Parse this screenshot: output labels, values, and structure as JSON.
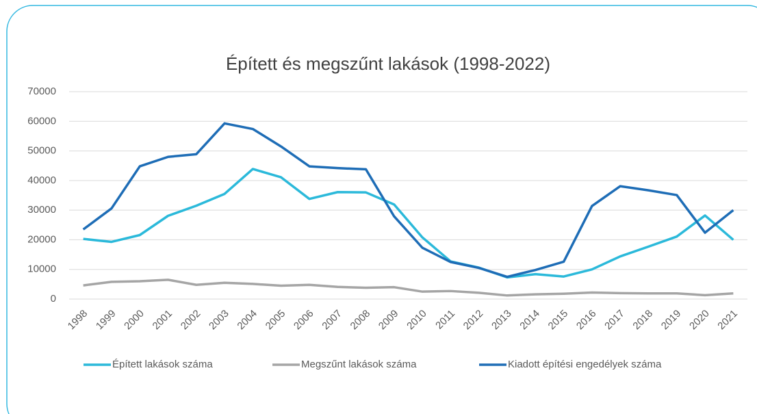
{
  "chart_data": {
    "type": "line",
    "title": "Épített és megszűnt lakások (1998-2022)",
    "categories": [
      "1998",
      "1999",
      "2000",
      "2001",
      "2002",
      "2003",
      "2004",
      "2005",
      "2006",
      "2007",
      "2008",
      "2009",
      "2010",
      "2011",
      "2012",
      "2013",
      "2014",
      "2015",
      "2016",
      "2017",
      "2018",
      "2019",
      "2020",
      "2021"
    ],
    "series": [
      {
        "name": "Épített lakások száma",
        "color": "#2bb9da",
        "values": [
          20300,
          19300,
          21600,
          28100,
          31500,
          35500,
          43900,
          41100,
          33800,
          36100,
          36000,
          31900,
          20800,
          12700,
          10600,
          7300,
          8400,
          7600,
          10000,
          14400,
          17700,
          21100,
          28200,
          20000
        ]
      },
      {
        "name": "Megszűnt lakások száma",
        "color": "#a5a5a5",
        "values": [
          4600,
          5800,
          6000,
          6500,
          4800,
          5500,
          5100,
          4500,
          4800,
          4100,
          3800,
          4000,
          2500,
          2700,
          2100,
          1200,
          1600,
          1800,
          2200,
          2000,
          1900,
          1900,
          1300,
          1900
        ]
      },
      {
        "name": "Kiadott építési engedélyek száma",
        "color": "#1e6db6",
        "values": [
          23500,
          30600,
          44800,
          48000,
          48900,
          59300,
          57400,
          51500,
          44800,
          44200,
          43800,
          27900,
          17300,
          12500,
          10500,
          7500,
          9800,
          12600,
          31400,
          38100,
          36700,
          35100,
          22400,
          30000
        ]
      }
    ],
    "ylim": [
      0,
      70000
    ],
    "yticks": [
      0,
      10000,
      20000,
      30000,
      40000,
      50000,
      60000,
      70000
    ],
    "grid": true
  }
}
